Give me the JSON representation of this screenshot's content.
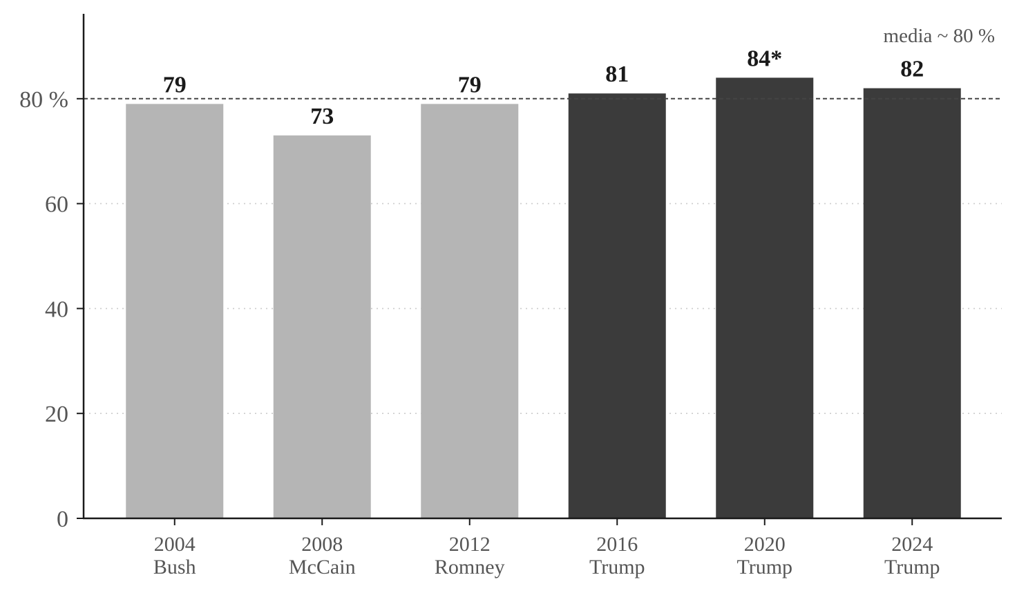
{
  "chart_data": {
    "type": "bar",
    "categories": [
      {
        "year": "2004",
        "name": "Bush"
      },
      {
        "year": "2008",
        "name": "McCain"
      },
      {
        "year": "2012",
        "name": "Romney"
      },
      {
        "year": "2016",
        "name": "Trump"
      },
      {
        "year": "2020",
        "name": "Trump"
      },
      {
        "year": "2024",
        "name": "Trump"
      }
    ],
    "values": [
      79,
      73,
      79,
      81,
      84,
      82
    ],
    "value_labels": [
      "79",
      "73",
      "79",
      "81",
      "84*",
      "82"
    ],
    "bar_colors": [
      "#b5b5b5",
      "#b5b5b5",
      "#b5b5b5",
      "#3b3b3b",
      "#3b3b3b",
      "#3b3b3b"
    ],
    "y_ticks": [
      {
        "value": 0,
        "label": "0"
      },
      {
        "value": 20,
        "label": "20"
      },
      {
        "value": 40,
        "label": "40"
      },
      {
        "value": 60,
        "label": "60"
      },
      {
        "value": 80,
        "label": "80 %"
      }
    ],
    "ylim": [
      0,
      96
    ],
    "grid": "horizontal dotted",
    "reference_line": {
      "value": 80,
      "label": "media ~ 80 %",
      "style": "dashed"
    },
    "title": "",
    "xlabel": "",
    "ylabel": ""
  }
}
